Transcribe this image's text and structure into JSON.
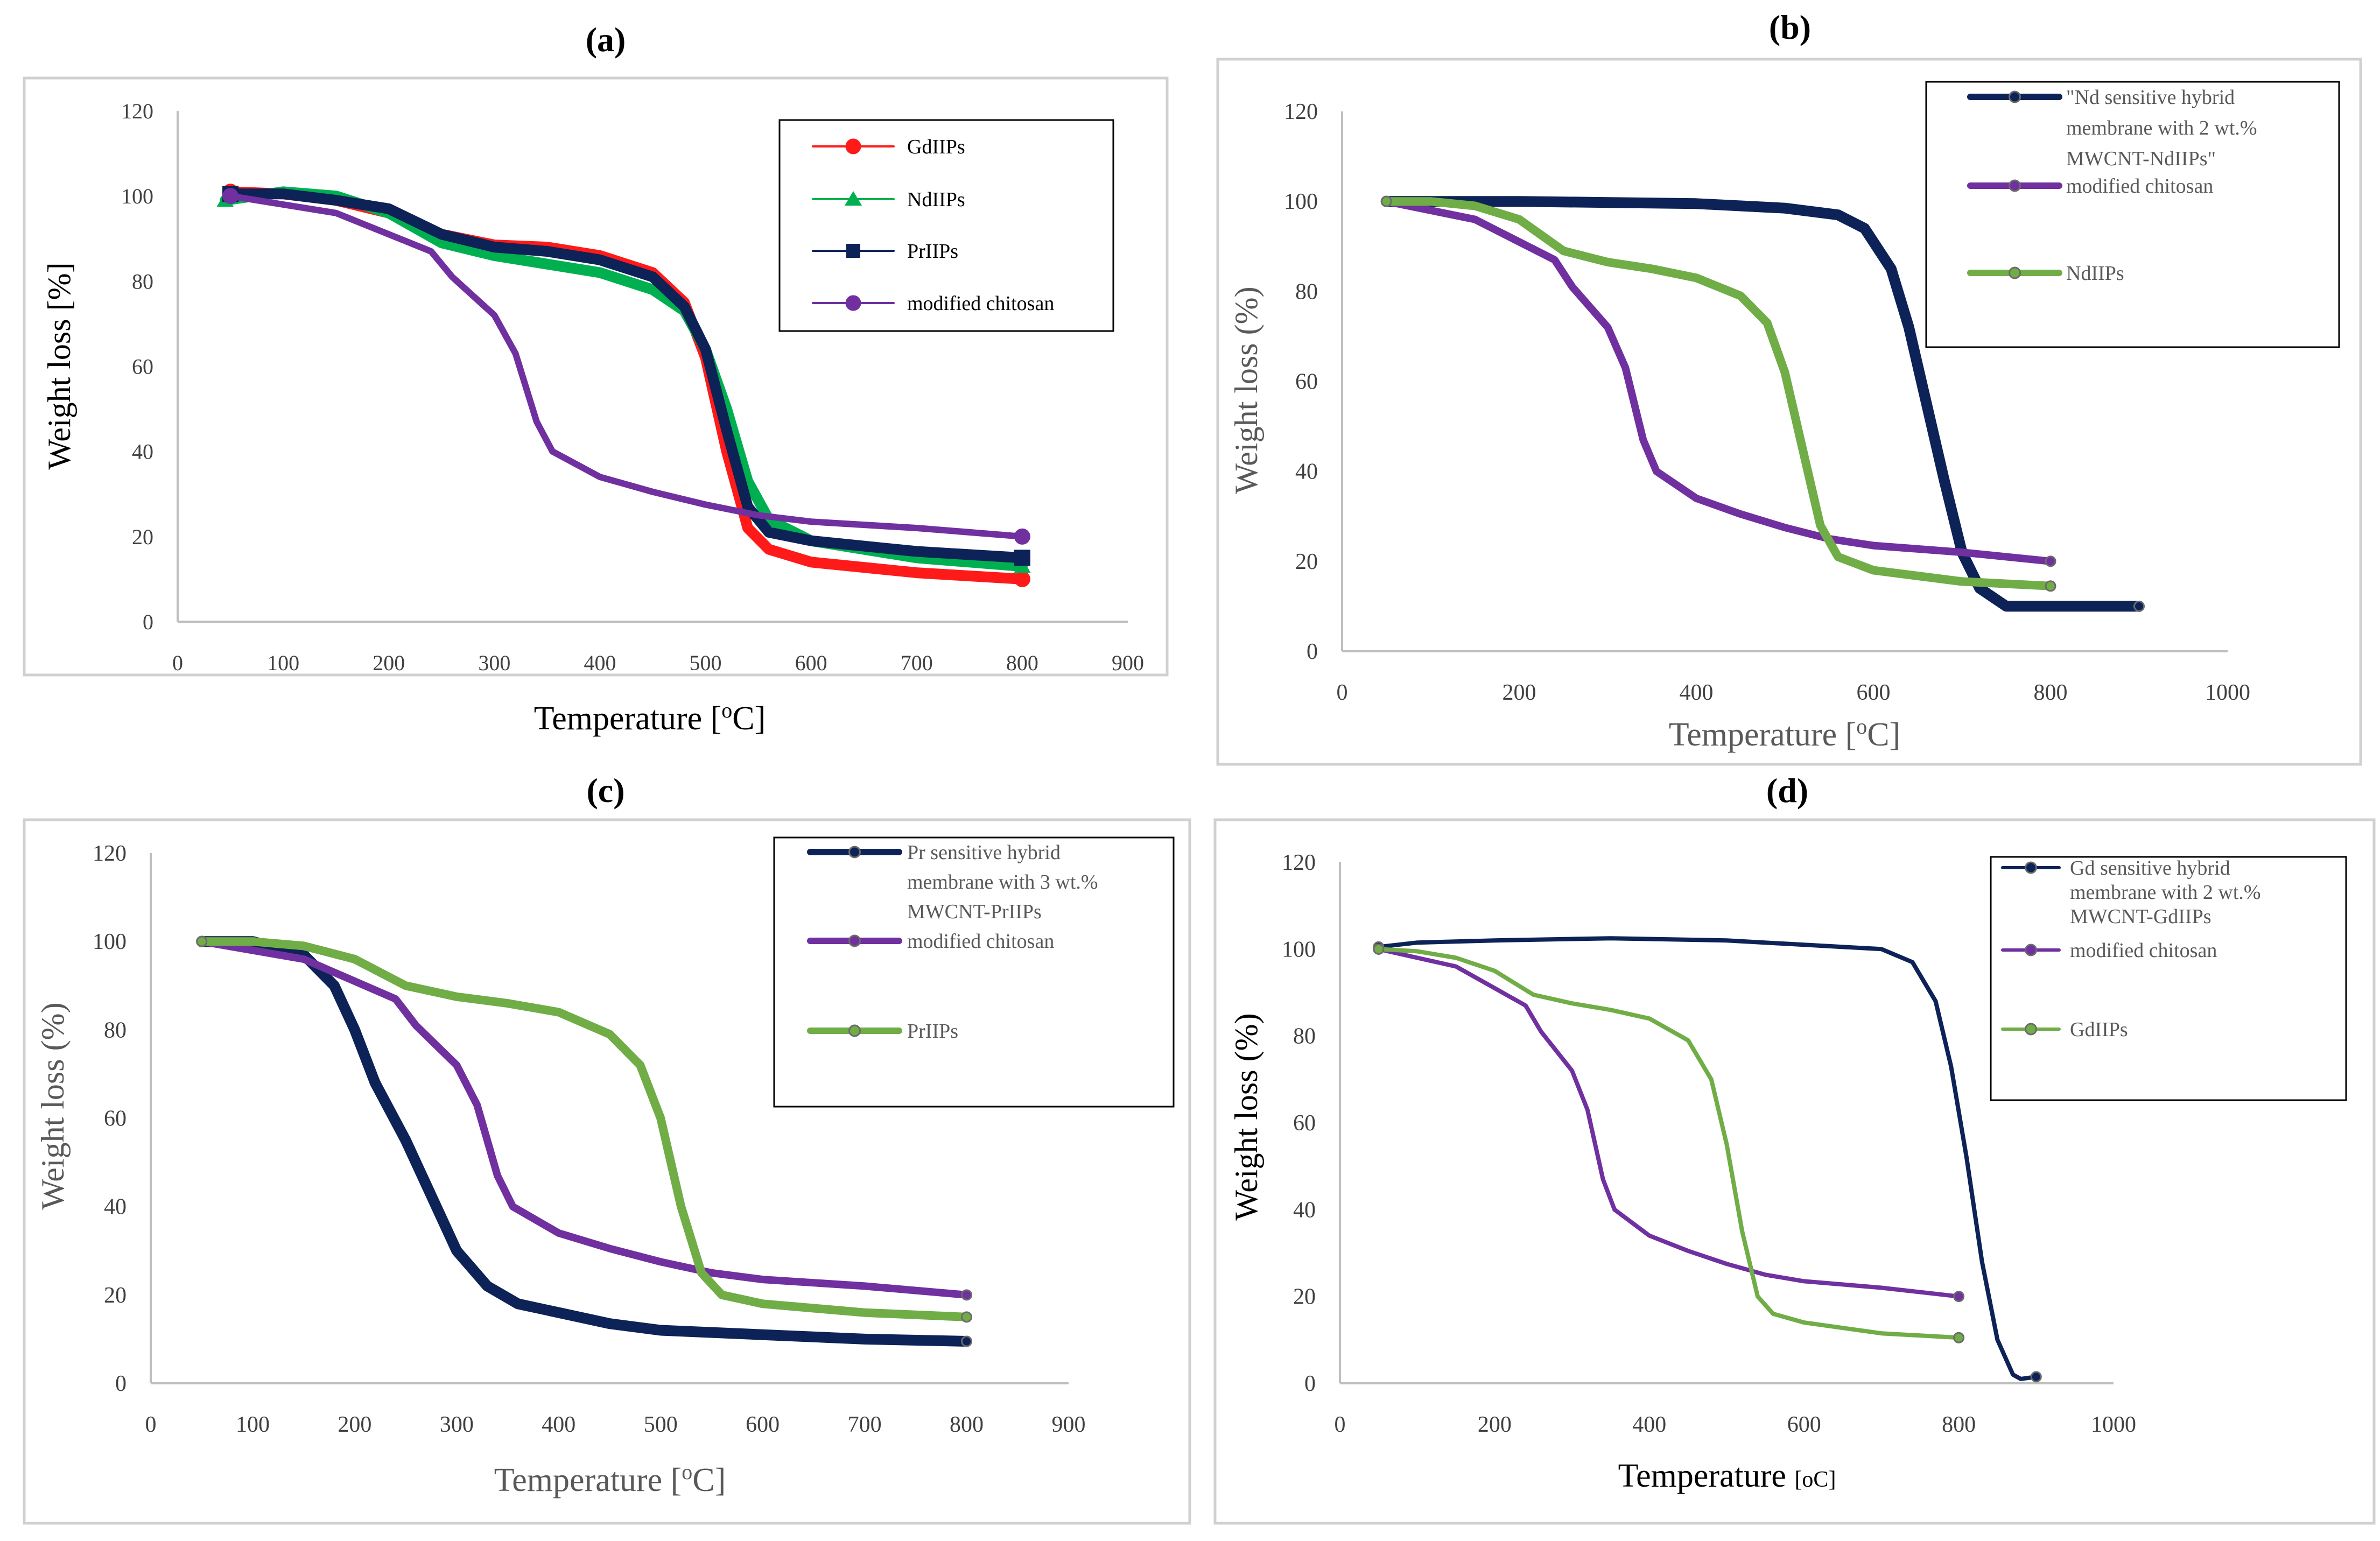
{
  "colors": {
    "frame": "#d0d0d0",
    "axis": "#bfbfbf",
    "tick_text": "#404040",
    "red": "#ff1a1a",
    "green_bright": "#00b050",
    "navy": "#0d2257",
    "purple": "#7030a0",
    "green_light": "#70ad47"
  },
  "chart_data": [
    {
      "panel_label": "(a)",
      "type": "line",
      "xlabel_main": "Temperature [",
      "xlabel_sup": "o",
      "xlabel_end": "C]",
      "ylabel": "Weight loss [%]",
      "xlim": [
        0,
        900
      ],
      "ylim": [
        0,
        120
      ],
      "x_ticks": [
        "0",
        "100",
        "200",
        "300",
        "400",
        "500",
        "600",
        "700",
        "800",
        "900"
      ],
      "y_ticks": [
        "0",
        "20",
        "40",
        "60",
        "80",
        "100",
        "120"
      ],
      "legend_position": "top-right",
      "series": [
        {
          "name": "GdIIPs",
          "color": "#ff1a1a",
          "marker": "circle",
          "x": [
            50,
            100,
            150,
            200,
            250,
            300,
            350,
            400,
            450,
            480,
            500,
            520,
            540,
            560,
            600,
            700,
            800
          ],
          "y": [
            101,
            100.5,
            99,
            96,
            91,
            88.5,
            88,
            86,
            82,
            75,
            62,
            40,
            22,
            17,
            14,
            11.5,
            10
          ]
        },
        {
          "name": "NdIIPs",
          "color": "#00b050",
          "marker": "triangle",
          "x": [
            45,
            100,
            150,
            200,
            250,
            300,
            350,
            400,
            450,
            480,
            500,
            520,
            540,
            560,
            600,
            700,
            800
          ],
          "y": [
            99,
            101,
            100,
            96,
            89,
            86,
            84,
            82,
            78,
            73,
            64,
            50,
            33,
            24,
            19,
            15,
            13
          ]
        },
        {
          "name": "PrIIPs",
          "color": "#0d2257",
          "marker": "square",
          "x": [
            50,
            100,
            150,
            200,
            250,
            300,
            350,
            400,
            450,
            480,
            500,
            520,
            540,
            560,
            600,
            700,
            800
          ],
          "y": [
            100.5,
            100.5,
            99,
            97,
            91,
            88,
            87,
            85,
            81,
            74,
            64,
            45,
            27,
            21,
            19,
            16.5,
            15
          ]
        },
        {
          "name": "modified chitosan",
          "color": "#7030a0",
          "marker": "circle",
          "x": [
            50,
            100,
            150,
            200,
            240,
            260,
            300,
            320,
            340,
            355,
            400,
            450,
            500,
            550,
            600,
            700,
            800
          ],
          "y": [
            100,
            98,
            96,
            91,
            87,
            81,
            72,
            63,
            47,
            40,
            34,
            30.5,
            27.5,
            25,
            23.5,
            22,
            20
          ]
        }
      ]
    },
    {
      "panel_label": "(b)",
      "type": "line",
      "xlabel_main": "Temperature [",
      "xlabel_sup": "o",
      "xlabel_end": "C]",
      "ylabel": "Weight loss (%)",
      "xlim": [
        0,
        1000
      ],
      "ylim": [
        0,
        120
      ],
      "x_ticks": [
        "0",
        "200",
        "400",
        "600",
        "800",
        "1000"
      ],
      "y_ticks": [
        "0",
        "20",
        "40",
        "60",
        "80",
        "100",
        "120"
      ],
      "legend_position": "top-right",
      "series": [
        {
          "name": "\"Nd sensitive hybrid membrane with 2 wt.% MWCNT-NdIIPs\"",
          "legend_lines": [
            "\"Nd sensitive hybrid",
            "membrane with 2 wt.%",
            "MWCNT-NdIIPs\""
          ],
          "color": "#0d2257",
          "marker": "circle",
          "x": [
            50,
            200,
            400,
            500,
            560,
            590,
            620,
            640,
            660,
            680,
            700,
            720,
            750,
            800,
            900
          ],
          "y": [
            100,
            100,
            99.5,
            98.5,
            97,
            94,
            85,
            72,
            55,
            38,
            22,
            14,
            10,
            10,
            10
          ]
        },
        {
          "name": "modified chitosan",
          "legend_lines": [
            "modified chitosan"
          ],
          "color": "#7030a0",
          "marker": "circle",
          "x": [
            50,
            100,
            150,
            200,
            240,
            260,
            300,
            320,
            340,
            355,
            400,
            450,
            500,
            550,
            600,
            700,
            800
          ],
          "y": [
            100,
            98,
            96,
            91,
            87,
            81,
            72,
            63,
            47,
            40,
            34,
            30.5,
            27.5,
            25,
            23.5,
            22,
            20
          ]
        },
        {
          "name": "NdIIPs",
          "legend_lines": [
            "NdIIPs"
          ],
          "color": "#70ad47",
          "marker": "circle",
          "x": [
            50,
            100,
            150,
            200,
            250,
            300,
            350,
            400,
            450,
            480,
            500,
            520,
            540,
            560,
            600,
            700,
            800
          ],
          "y": [
            100,
            100,
            99,
            96,
            89,
            86.5,
            85,
            83,
            79,
            73,
            62,
            45,
            28,
            21,
            18,
            15.5,
            14.5
          ]
        }
      ]
    },
    {
      "panel_label": "(c)",
      "type": "line",
      "xlabel_main": "Temperature [",
      "xlabel_sup": "o",
      "xlabel_end": "C]",
      "ylabel": "Weight loss (%)",
      "xlim": [
        0,
        900
      ],
      "ylim": [
        0,
        120
      ],
      "x_ticks": [
        "0",
        "100",
        "200",
        "300",
        "400",
        "500",
        "600",
        "700",
        "800",
        "900"
      ],
      "y_ticks": [
        "0",
        "20",
        "40",
        "60",
        "80",
        "100",
        "120"
      ],
      "legend_position": "top-right",
      "series": [
        {
          "name": "Pr sensitive hybrid membrane with 3 wt.% MWCNT-PrIIPs",
          "legend_lines": [
            "Pr sensitive hybrid",
            "membrane with 3 wt.%",
            "MWCNT-PrIIPs"
          ],
          "color": "#0d2257",
          "marker": "circle",
          "x": [
            50,
            100,
            150,
            180,
            200,
            220,
            250,
            270,
            300,
            330,
            360,
            400,
            450,
            500,
            600,
            700,
            800
          ],
          "y": [
            100,
            100,
            97,
            90,
            80,
            68,
            55,
            45,
            30,
            22,
            18,
            16,
            13.5,
            12,
            11,
            10,
            9.5
          ]
        },
        {
          "name": "modified chitosan",
          "legend_lines": [
            "modified chitosan"
          ],
          "color": "#7030a0",
          "marker": "circle",
          "x": [
            50,
            100,
            150,
            200,
            240,
            260,
            300,
            320,
            340,
            355,
            400,
            450,
            500,
            550,
            600,
            700,
            800
          ],
          "y": [
            100,
            98,
            96,
            91,
            87,
            81,
            72,
            63,
            47,
            40,
            34,
            30.5,
            27.5,
            25,
            23.5,
            22,
            20
          ]
        },
        {
          "name": "PrIIPs",
          "legend_lines": [
            "PrIIPs"
          ],
          "color": "#70ad47",
          "marker": "circle",
          "x": [
            50,
            100,
            150,
            200,
            250,
            300,
            350,
            400,
            450,
            480,
            500,
            520,
            540,
            560,
            600,
            700,
            800
          ],
          "y": [
            100,
            100,
            99,
            96,
            90,
            87.5,
            86,
            84,
            79,
            72,
            60,
            40,
            25,
            20,
            18,
            16,
            15
          ]
        }
      ]
    },
    {
      "panel_label": "(d)",
      "type": "line",
      "xlabel_main": "Temperature ",
      "xlabel_small": "[oC]",
      "xlabel_sup": "",
      "xlabel_end": "",
      "ylabel": "Weight loss (%)",
      "xlim": [
        0,
        1000
      ],
      "ylim": [
        0,
        120
      ],
      "x_ticks": [
        "0",
        "200",
        "400",
        "600",
        "800",
        "1000"
      ],
      "y_ticks": [
        "0",
        "20",
        "40",
        "60",
        "80",
        "100",
        "120"
      ],
      "legend_position": "top-right",
      "series": [
        {
          "name": "Gd sensitive hybrid membrane with 2 wt.% MWCNT-GdIIPs",
          "legend_lines": [
            "Gd sensitive hybrid",
            "membrane with 2 wt.%",
            "MWCNT-GdIIPs"
          ],
          "color": "#0d2257",
          "marker": "circle",
          "x": [
            50,
            100,
            200,
            350,
            500,
            600,
            700,
            740,
            770,
            790,
            810,
            830,
            850,
            870,
            880,
            900
          ],
          "y": [
            100.5,
            101.5,
            102,
            102.5,
            102,
            101,
            100,
            97,
            88,
            73,
            52,
            28,
            10,
            2,
            1,
            1.5
          ]
        },
        {
          "name": "modified chitosan",
          "legend_lines": [
            "modified chitosan"
          ],
          "color": "#7030a0",
          "marker": "circle",
          "x": [
            50,
            100,
            150,
            200,
            240,
            260,
            300,
            320,
            340,
            355,
            400,
            450,
            500,
            550,
            600,
            700,
            800
          ],
          "y": [
            100,
            98,
            96,
            91,
            87,
            81,
            72,
            63,
            47,
            40,
            34,
            30.5,
            27.5,
            25,
            23.5,
            22,
            20
          ]
        },
        {
          "name": "GdIIPs",
          "legend_lines": [
            "GdIIPs"
          ],
          "color": "#70ad47",
          "marker": "circle",
          "x": [
            50,
            100,
            150,
            200,
            250,
            300,
            350,
            400,
            450,
            480,
            500,
            520,
            540,
            560,
            600,
            700,
            800
          ],
          "y": [
            100,
            99.5,
            98,
            95,
            89.5,
            87.5,
            86,
            84,
            79,
            70,
            55,
            35,
            20,
            16,
            14,
            11.5,
            10.5
          ]
        }
      ]
    }
  ]
}
